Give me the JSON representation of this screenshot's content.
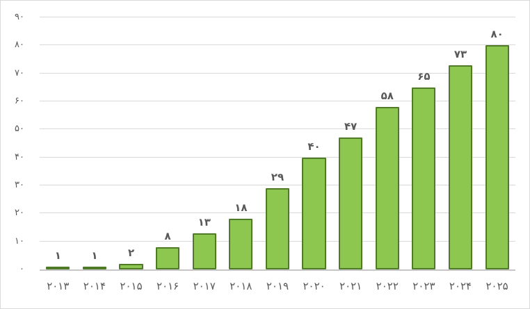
{
  "chart_data": {
    "type": "bar",
    "number_system": "persian-digits",
    "categories": [
      "۲۰۱۳",
      "۲۰۱۴",
      "۲۰۱۵",
      "۲۰۱۶",
      "۲۰۱۷",
      "۲۰۱۸",
      "۲۰۱۹",
      "۲۰۲۰",
      "۲۰۲۱",
      "۲۰۲۲",
      "۲۰۲۳",
      "۲۰۲۴",
      "۲۰۲۵"
    ],
    "values": [
      1,
      1,
      2,
      8,
      13,
      18,
      29,
      40,
      47,
      58,
      65,
      73,
      80
    ],
    "data_labels": [
      "۱",
      "۱",
      "۲",
      "۸",
      "۱۳",
      "۱۸",
      "۲۹",
      "۴۰",
      "۴۷",
      "۵۸",
      "۶۵",
      "۷۳",
      "۸۰"
    ],
    "y_ticks": [
      {
        "value": 0,
        "label": "۰"
      },
      {
        "value": 10,
        "label": "۱۰"
      },
      {
        "value": 20,
        "label": "۲۰"
      },
      {
        "value": 30,
        "label": "۳۰"
      },
      {
        "value": 40,
        "label": "۴۰"
      },
      {
        "value": 50,
        "label": "۵۰"
      },
      {
        "value": 60,
        "label": "۶۰"
      },
      {
        "value": 70,
        "label": "۷۰"
      },
      {
        "value": 80,
        "label": "۸۰"
      },
      {
        "value": 90,
        "label": "۹۰"
      }
    ],
    "ylim": [
      0,
      90
    ],
    "grid": true,
    "legend": "none",
    "colors": {
      "bar_fill": "#8dc74f",
      "bar_border": "#4f7b28",
      "gridline": "#d9d9d9",
      "axis_line": "#c6c6c6",
      "label_text": "#595959",
      "frame_border": "#d9d9d9",
      "background": "#ffffff"
    }
  }
}
